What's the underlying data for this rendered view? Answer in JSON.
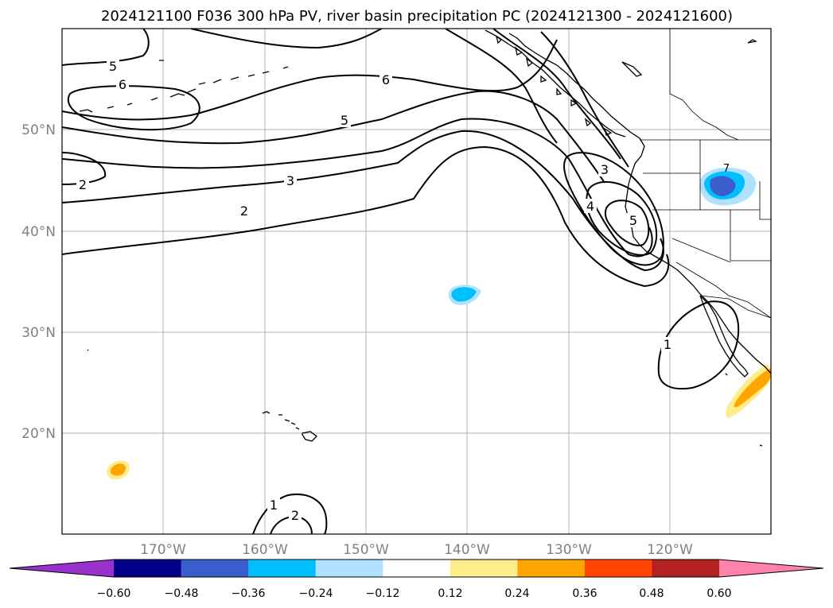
{
  "title": "2024121100 F036 300 hPa PV, river basin precipitation PC (2024121300 - 2024121600)",
  "map": {
    "lon_labels": [
      "170°W",
      "160°W",
      "150°W",
      "140°W",
      "130°W",
      "120°W"
    ],
    "lat_labels": [
      "50°N",
      "40°N",
      "30°N",
      "20°N"
    ],
    "contour_labels": [
      "5",
      "6",
      "6",
      "5",
      "2",
      "3",
      "2",
      "3",
      "4",
      "5",
      "1",
      "1",
      "2",
      "7"
    ]
  },
  "colorbar": {
    "colors": [
      "#9932cc",
      "#00008b",
      "#3a5fcd",
      "#00bfff",
      "#b0e2ff",
      "#ffffff",
      "#ffec8b",
      "#ffa500",
      "#ff4500",
      "#b22222",
      "#ff82ab"
    ],
    "tick_labels": [
      "−0.60",
      "−0.48",
      "−0.36",
      "−0.24",
      "−0.12",
      "0.12",
      "0.24",
      "0.36",
      "0.48",
      "0.60"
    ]
  }
}
